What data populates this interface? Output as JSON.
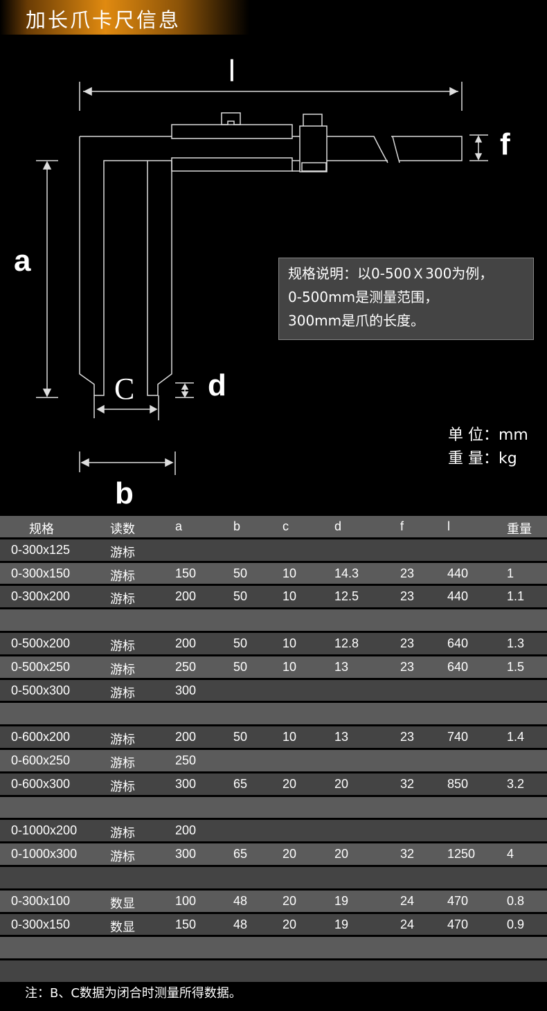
{
  "title": "加长爪卡尺信息",
  "diagram": {
    "labels": {
      "l": "l",
      "f": "f",
      "a": "a",
      "c": "C",
      "d": "d",
      "b": "b"
    },
    "note": [
      "规格说明：以0-500Ｘ300为例，",
      "0-500mm是测量范围，",
      "300mm是爪的长度。"
    ],
    "units": [
      "单 位：mm",
      "重 量：kg"
    ]
  },
  "table": {
    "headers": [
      "规格",
      "读数",
      "a",
      "b",
      "c",
      "d",
      "f",
      "l",
      "重量"
    ],
    "rows": [
      [
        "0-300x125",
        "游标",
        "",
        "",
        "",
        "",
        "",
        "",
        ""
      ],
      [
        "0-300x150",
        "游标",
        "150",
        "50",
        "10",
        "14.3",
        "23",
        "440",
        "1"
      ],
      [
        "0-300x200",
        "游标",
        "200",
        "50",
        "10",
        "12.5",
        "23",
        "440",
        "1.1"
      ],
      [
        "",
        "",
        "",
        "",
        "",
        "",
        "",
        "",
        ""
      ],
      [
        "0-500x200",
        "游标",
        "200",
        "50",
        "10",
        "12.8",
        "23",
        "640",
        "1.3"
      ],
      [
        "0-500x250",
        "游标",
        "250",
        "50",
        "10",
        "13",
        "23",
        "640",
        "1.5"
      ],
      [
        "0-500x300",
        "游标",
        "300",
        "",
        "",
        "",
        "",
        "",
        ""
      ],
      [
        "",
        "",
        "",
        "",
        "",
        "",
        "",
        "",
        ""
      ],
      [
        "0-600x200",
        "游标",
        "200",
        "50",
        "10",
        "13",
        "23",
        "740",
        "1.4"
      ],
      [
        "0-600x250",
        "游标",
        "250",
        "",
        "",
        "",
        "",
        "",
        ""
      ],
      [
        "0-600x300",
        "游标",
        "300",
        "65",
        "20",
        "20",
        "32",
        "850",
        "3.2"
      ],
      [
        "",
        "",
        "",
        "",
        "",
        "",
        "",
        "",
        ""
      ],
      [
        "0-1000x200",
        "游标",
        "200",
        "",
        "",
        "",
        "",
        "",
        ""
      ],
      [
        "0-1000x300",
        "游标",
        "300",
        "65",
        "20",
        "20",
        "32",
        "1250",
        "4"
      ],
      [
        "",
        "",
        "",
        "",
        "",
        "",
        "",
        "",
        ""
      ],
      [
        "0-300x100",
        "数显",
        "100",
        "48",
        "20",
        "19",
        "24",
        "470",
        "0.8"
      ],
      [
        "0-300x150",
        "数显",
        "150",
        "48",
        "20",
        "19",
        "24",
        "470",
        "0.9"
      ],
      [
        "",
        "",
        "",
        "",
        "",
        "",
        "",
        "",
        ""
      ],
      [
        "",
        "",
        "",
        "",
        "",
        "",
        "",
        "",
        ""
      ]
    ]
  },
  "footer": "注：B、C数据为闭合时测量所得数据。",
  "colors": {
    "header_gradient": "#e08a10",
    "row_dark": "#444444",
    "row_light": "#5b5b5b"
  }
}
